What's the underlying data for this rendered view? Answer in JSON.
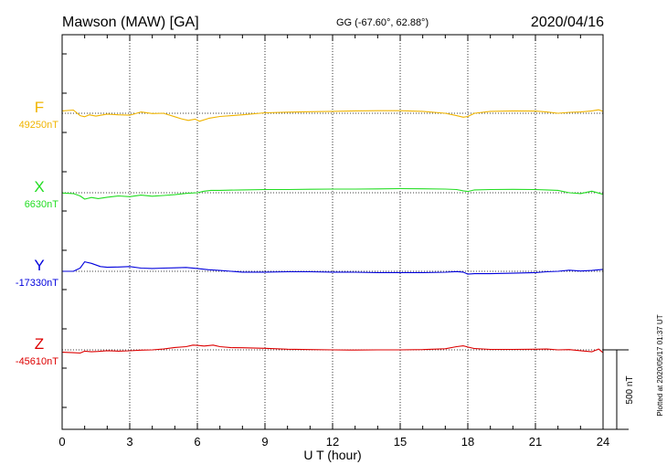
{
  "chart_data": {
    "type": "line",
    "title": "Mawson (MAW)  [GA]",
    "subtitle": "GG (-67.60°,  62.88°)",
    "date": "2020/04/16",
    "xlabel": "U T (hour)",
    "xlim": [
      0,
      24
    ],
    "xticks": [
      0,
      3,
      6,
      9,
      12,
      15,
      18,
      21,
      24
    ],
    "grid": true,
    "scale_bar_label": "500 nT",
    "scale_bar_nT": 500,
    "footer": "Plotted at 2020/05/17 01:37 UT",
    "series": [
      {
        "name": "F",
        "baseline_label": "49250nT",
        "baseline_nT": 49250,
        "color": "#f0b400",
        "x": [
          0,
          0.5,
          0.8,
          1.0,
          1.2,
          1.5,
          2.0,
          2.5,
          3.0,
          3.5,
          4.0,
          4.5,
          5.0,
          5.3,
          5.6,
          5.9,
          6.1,
          6.5,
          7.0,
          8.0,
          9.0,
          10.0,
          11.0,
          12.0,
          13.0,
          14.0,
          15.0,
          16.0,
          17.0,
          17.5,
          17.8,
          18.0,
          18.3,
          19.0,
          20.0,
          21.0,
          21.5,
          22.0,
          22.5,
          23.0,
          23.5,
          23.8,
          24.0
        ],
        "y": [
          49265,
          49270,
          49235,
          49228,
          49240,
          49232,
          49245,
          49240,
          49238,
          49258,
          49248,
          49250,
          49228,
          49215,
          49205,
          49213,
          49200,
          49218,
          49230,
          49240,
          49253,
          49257,
          49260,
          49262,
          49265,
          49266,
          49266,
          49262,
          49250,
          49235,
          49225,
          49230,
          49250,
          49262,
          49265,
          49264,
          49258,
          49250,
          49256,
          49258,
          49265,
          49272,
          49262
        ]
      },
      {
        "name": "X",
        "baseline_label": "6630nT",
        "baseline_nT": 6630,
        "color": "#22dd22",
        "x": [
          0,
          0.5,
          0.8,
          1.0,
          1.3,
          1.6,
          2.0,
          2.5,
          3.0,
          3.5,
          4.0,
          4.5,
          5.0,
          5.5,
          6.0,
          6.3,
          6.6,
          7.0,
          8.0,
          9.0,
          10.0,
          11.0,
          12.0,
          13.0,
          14.0,
          15.0,
          16.0,
          17.0,
          17.5,
          17.8,
          18.0,
          18.3,
          19.0,
          20.0,
          21.0,
          21.5,
          22.0,
          22.5,
          23.0,
          23.5,
          24.0
        ],
        "y": [
          6628,
          6625,
          6610,
          6590,
          6600,
          6593,
          6602,
          6610,
          6605,
          6615,
          6608,
          6613,
          6618,
          6626,
          6630,
          6640,
          6645,
          6645,
          6648,
          6650,
          6650,
          6652,
          6653,
          6653,
          6654,
          6656,
          6655,
          6653,
          6650,
          6642,
          6638,
          6648,
          6650,
          6651,
          6650,
          6648,
          6645,
          6630,
          6625,
          6640,
          6620
        ]
      },
      {
        "name": "Y",
        "baseline_label": "-17330nT",
        "baseline_nT": -17330,
        "color": "#0000dd",
        "x": [
          0,
          0.5,
          0.8,
          1.0,
          1.3,
          1.7,
          2.0,
          2.5,
          3.0,
          3.5,
          4.0,
          4.5,
          5.0,
          5.5,
          6.0,
          6.5,
          7.0,
          7.5,
          8.0,
          9.0,
          10.0,
          11.0,
          12.0,
          13.0,
          14.0,
          15.0,
          16.0,
          17.0,
          17.5,
          17.8,
          18.0,
          18.3,
          19.0,
          20.0,
          21.0,
          21.5,
          22.0,
          22.5,
          23.0,
          23.5,
          24.0
        ],
        "y": [
          -17330,
          -17330,
          -17310,
          -17270,
          -17280,
          -17300,
          -17305,
          -17303,
          -17300,
          -17310,
          -17312,
          -17310,
          -17308,
          -17306,
          -17312,
          -17320,
          -17325,
          -17330,
          -17335,
          -17335,
          -17333,
          -17333,
          -17335,
          -17336,
          -17338,
          -17338,
          -17338,
          -17336,
          -17332,
          -17335,
          -17348,
          -17345,
          -17345,
          -17342,
          -17338,
          -17333,
          -17330,
          -17323,
          -17328,
          -17325,
          -17318
        ]
      },
      {
        "name": "Z",
        "baseline_label": "-45610nT",
        "baseline_nT": -45610,
        "color": "#dd0000",
        "x": [
          0,
          0.5,
          0.8,
          1.0,
          1.3,
          1.6,
          2.0,
          2.5,
          3.0,
          3.5,
          4.0,
          4.5,
          5.0,
          5.5,
          5.8,
          6.0,
          6.3,
          6.7,
          7.0,
          7.5,
          8.0,
          9.0,
          10.0,
          11.0,
          12.0,
          13.0,
          14.0,
          15.0,
          16.0,
          17.0,
          17.5,
          17.8,
          18.0,
          18.3,
          19.0,
          20.0,
          21.0,
          21.5,
          22.0,
          22.5,
          23.0,
          23.5,
          23.8,
          24.0
        ],
        "y": [
          -45625,
          -45628,
          -45630,
          -45618,
          -45622,
          -45620,
          -45615,
          -45618,
          -45616,
          -45612,
          -45610,
          -45605,
          -45595,
          -45590,
          -45580,
          -45582,
          -45586,
          -45580,
          -45590,
          -45596,
          -45597,
          -45600,
          -45606,
          -45608,
          -45610,
          -45611,
          -45610,
          -45610,
          -45608,
          -45603,
          -45590,
          -45585,
          -45592,
          -45602,
          -45607,
          -45607,
          -45606,
          -45605,
          -45610,
          -45608,
          -45615,
          -45622,
          -45605,
          -45628
        ]
      }
    ]
  }
}
